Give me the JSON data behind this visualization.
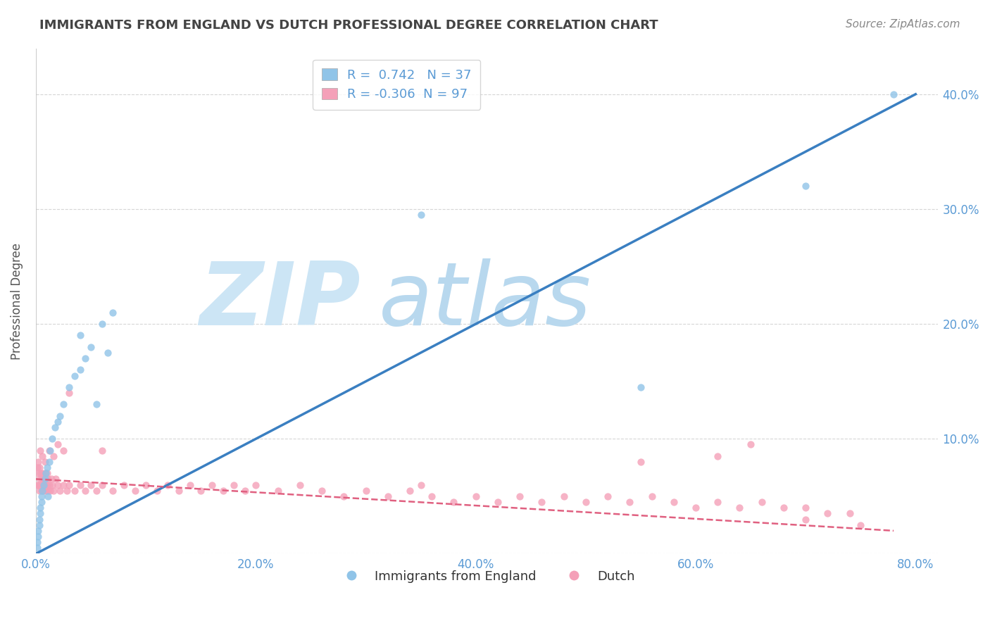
{
  "title": "IMMIGRANTS FROM ENGLAND VS DUTCH PROFESSIONAL DEGREE CORRELATION CHART",
  "source": "Source: ZipAtlas.com",
  "xlabel": "",
  "ylabel": "Professional Degree",
  "legend_labels": [
    "Immigrants from England",
    "Dutch"
  ],
  "series1": {
    "name": "Immigrants from England",
    "R": 0.742,
    "N": 37,
    "color": "#90c4e8",
    "line_color": "#3a7fc1",
    "x": [
      0.001,
      0.001,
      0.002,
      0.002,
      0.003,
      0.003,
      0.004,
      0.004,
      0.005,
      0.005,
      0.006,
      0.007,
      0.008,
      0.009,
      0.01,
      0.011,
      0.012,
      0.013,
      0.015,
      0.017,
      0.02,
      0.022,
      0.025,
      0.03,
      0.035,
      0.04,
      0.045,
      0.05,
      0.06,
      0.07,
      0.04,
      0.055,
      0.065,
      0.35,
      0.55,
      0.7,
      0.78
    ],
    "y": [
      0.005,
      0.01,
      0.015,
      0.02,
      0.025,
      0.03,
      0.035,
      0.04,
      0.045,
      0.05,
      0.055,
      0.06,
      0.065,
      0.07,
      0.075,
      0.05,
      0.08,
      0.09,
      0.1,
      0.11,
      0.115,
      0.12,
      0.13,
      0.145,
      0.155,
      0.16,
      0.17,
      0.18,
      0.2,
      0.21,
      0.19,
      0.13,
      0.175,
      0.295,
      0.145,
      0.32,
      0.4
    ]
  },
  "series2": {
    "name": "Dutch",
    "R": -0.306,
    "N": 97,
    "color": "#f4a0b8",
    "line_color": "#e06080",
    "x": [
      0.001,
      0.001,
      0.002,
      0.002,
      0.003,
      0.003,
      0.004,
      0.004,
      0.005,
      0.005,
      0.006,
      0.006,
      0.007,
      0.007,
      0.008,
      0.008,
      0.009,
      0.009,
      0.01,
      0.01,
      0.011,
      0.011,
      0.012,
      0.013,
      0.014,
      0.015,
      0.016,
      0.018,
      0.02,
      0.022,
      0.025,
      0.028,
      0.03,
      0.035,
      0.04,
      0.045,
      0.05,
      0.055,
      0.06,
      0.07,
      0.08,
      0.09,
      0.1,
      0.11,
      0.12,
      0.13,
      0.14,
      0.15,
      0.16,
      0.17,
      0.18,
      0.19,
      0.2,
      0.22,
      0.24,
      0.26,
      0.28,
      0.3,
      0.32,
      0.34,
      0.36,
      0.38,
      0.4,
      0.42,
      0.44,
      0.46,
      0.48,
      0.5,
      0.52,
      0.54,
      0.56,
      0.58,
      0.6,
      0.62,
      0.64,
      0.66,
      0.68,
      0.7,
      0.72,
      0.74,
      0.002,
      0.003,
      0.004,
      0.006,
      0.008,
      0.012,
      0.016,
      0.02,
      0.025,
      0.03,
      0.06,
      0.35,
      0.55,
      0.62,
      0.65,
      0.7,
      0.75
    ],
    "y": [
      0.06,
      0.075,
      0.06,
      0.07,
      0.055,
      0.065,
      0.06,
      0.07,
      0.055,
      0.065,
      0.06,
      0.07,
      0.055,
      0.065,
      0.06,
      0.07,
      0.055,
      0.065,
      0.06,
      0.07,
      0.055,
      0.065,
      0.06,
      0.055,
      0.065,
      0.06,
      0.055,
      0.065,
      0.06,
      0.055,
      0.06,
      0.055,
      0.06,
      0.055,
      0.06,
      0.055,
      0.06,
      0.055,
      0.06,
      0.055,
      0.06,
      0.055,
      0.06,
      0.055,
      0.06,
      0.055,
      0.06,
      0.055,
      0.06,
      0.055,
      0.06,
      0.055,
      0.06,
      0.055,
      0.06,
      0.055,
      0.05,
      0.055,
      0.05,
      0.055,
      0.05,
      0.045,
      0.05,
      0.045,
      0.05,
      0.045,
      0.05,
      0.045,
      0.05,
      0.045,
      0.05,
      0.045,
      0.04,
      0.045,
      0.04,
      0.045,
      0.04,
      0.04,
      0.035,
      0.035,
      0.08,
      0.075,
      0.09,
      0.085,
      0.08,
      0.09,
      0.085,
      0.095,
      0.09,
      0.14,
      0.09,
      0.06,
      0.08,
      0.085,
      0.095,
      0.03,
      0.025
    ]
  },
  "xlim": [
    0.0,
    0.82
  ],
  "ylim": [
    0.0,
    0.44
  ],
  "xticks": [
    0.0,
    0.2,
    0.4,
    0.6,
    0.8
  ],
  "xticklabels": [
    "0.0%",
    "20.0%",
    "40.0%",
    "60.0%",
    "80.0%"
  ],
  "yticks": [
    0.0,
    0.1,
    0.2,
    0.3,
    0.4
  ],
  "right_yticklabels": [
    "",
    "10.0%",
    "20.0%",
    "30.0%",
    "40.0%"
  ],
  "watermark_zip_color": "#cce5f5",
  "watermark_atlas_color": "#b8d8ee",
  "bg_color": "#ffffff",
  "grid_color": "#bbbbbb",
  "title_color": "#444444",
  "axis_label_color": "#555555",
  "tick_label_color": "#5b9bd5",
  "source_color": "#888888"
}
